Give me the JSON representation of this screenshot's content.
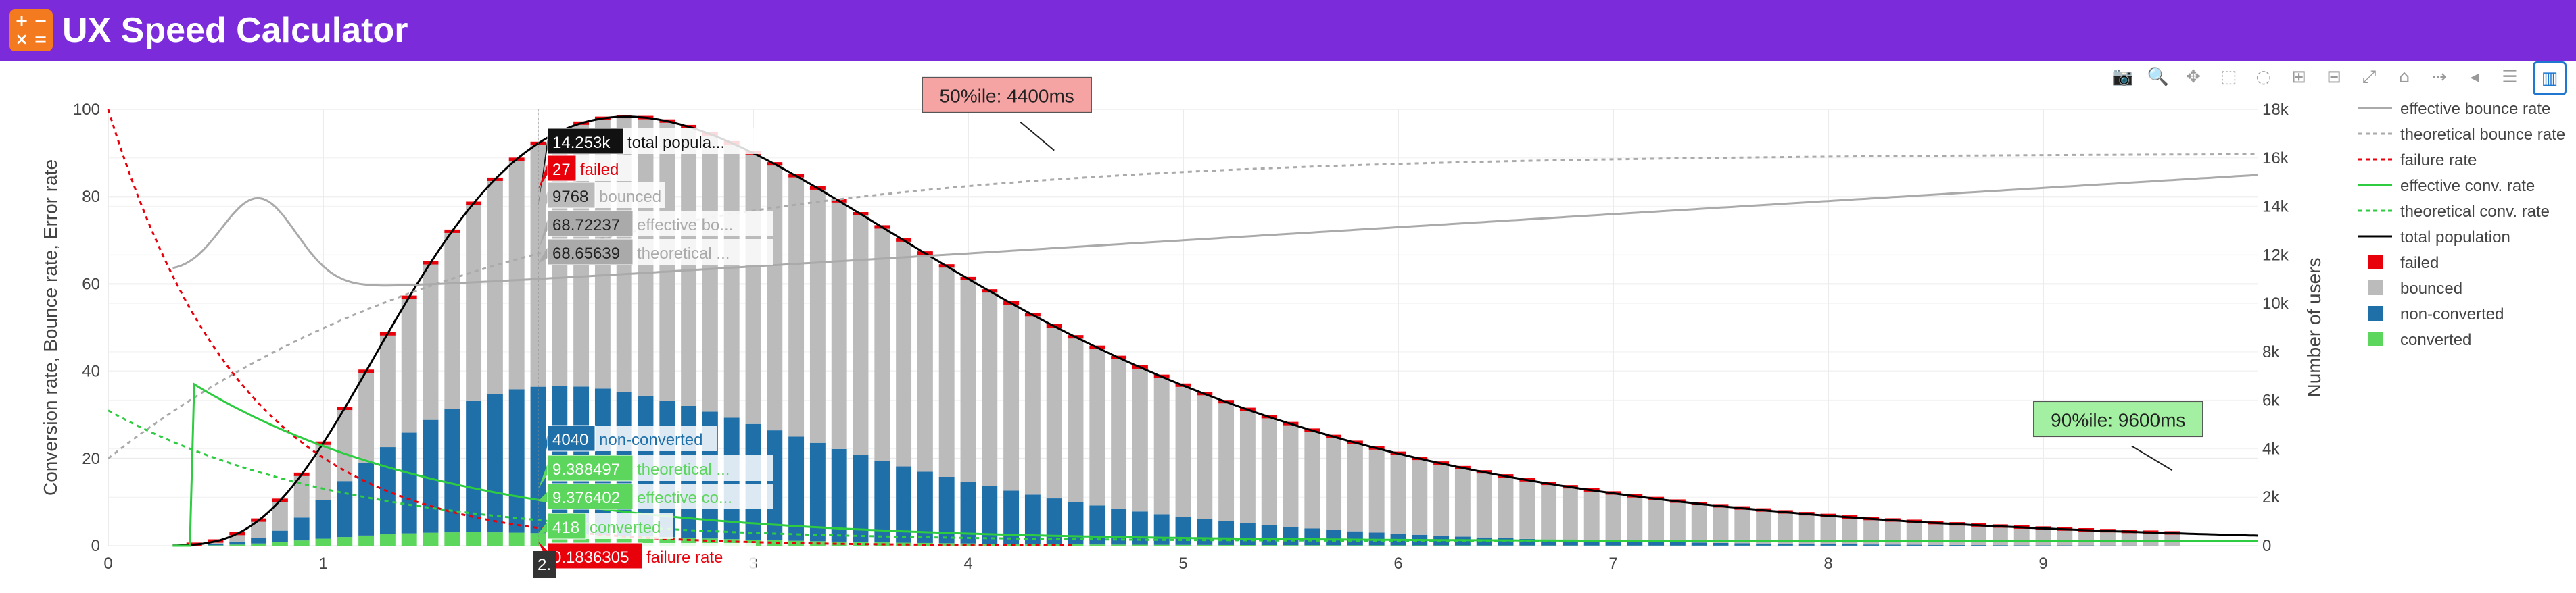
{
  "app": {
    "title": "UX Speed Calculator",
    "icon_glyphs": [
      "+",
      "−",
      "×",
      "="
    ]
  },
  "modebar": {
    "buttons": [
      {
        "name": "camera-icon",
        "glyph": "📷"
      },
      {
        "name": "zoom-icon",
        "glyph": "🔍"
      },
      {
        "name": "pan-icon",
        "glyph": "✥"
      },
      {
        "name": "box-select-icon",
        "glyph": "⬚"
      },
      {
        "name": "lasso-select-icon",
        "glyph": "◌"
      },
      {
        "name": "zoom-in-icon",
        "glyph": "⊞"
      },
      {
        "name": "zoom-out-icon",
        "glyph": "⊟"
      },
      {
        "name": "autoscale-icon",
        "glyph": "⤢"
      },
      {
        "name": "reset-axes-icon",
        "glyph": "⌂"
      },
      {
        "name": "spike-lines-icon",
        "glyph": "⇢"
      },
      {
        "name": "hover-closest-icon",
        "glyph": "◂"
      },
      {
        "name": "hover-compare-icon",
        "glyph": "☰"
      },
      {
        "name": "plotly-logo-icon",
        "glyph": "▥"
      }
    ]
  },
  "chart_data": {
    "type": "bar",
    "xlim": [
      0,
      10
    ],
    "x_ticks": [
      "0",
      "1",
      "2",
      "3",
      "4",
      "5",
      "6",
      "7",
      "8",
      "9"
    ],
    "ylabel_left": "Conversion rate, Bounce rate, Error rate",
    "ylim_left": [
      0,
      100
    ],
    "y_ticks_left": [
      "0",
      "20",
      "40",
      "60",
      "80",
      "100"
    ],
    "ylabel_right": "Number of users",
    "ylim_right": [
      0,
      18000
    ],
    "y_ticks_right": [
      "0",
      "2k",
      "4k",
      "6k",
      "8k",
      "10k",
      "12k",
      "14k",
      "16k",
      "18k"
    ],
    "grid": true,
    "legend_position": "right",
    "legend": [
      {
        "label": "effective bounce rate",
        "style": "line",
        "color": "#aaaaaa"
      },
      {
        "label": "theoretical bounce rate",
        "style": "dot",
        "color": "#aaaaaa"
      },
      {
        "label": "failure rate",
        "style": "dot",
        "color": "#e8000b"
      },
      {
        "label": "effective conv. rate",
        "style": "line",
        "color": "#2ecc40"
      },
      {
        "label": "theoretical conv. rate",
        "style": "dot",
        "color": "#2ecc40"
      },
      {
        "label": "total population",
        "style": "line",
        "color": "#000000"
      },
      {
        "label": "failed",
        "style": "box",
        "color": "#e8000b"
      },
      {
        "label": "bounced",
        "style": "box",
        "color": "#bbbbbb"
      },
      {
        "label": "non-converted",
        "style": "box",
        "color": "#1f6fa8"
      },
      {
        "label": "converted",
        "style": "box",
        "color": "#5cd65c"
      }
    ],
    "hover_x": "2.",
    "hover_labels": [
      {
        "value": "14.253k",
        "name": "total popula...",
        "kind": "total"
      },
      {
        "value": "27",
        "name": "failed",
        "kind": "failed"
      },
      {
        "value": "9768",
        "name": "bounced",
        "kind": "bounced"
      },
      {
        "value": "68.72237",
        "name": "effective bo...",
        "kind": "ebr"
      },
      {
        "value": "68.65639",
        "name": "theoretical ...",
        "kind": "tbr"
      },
      {
        "value": "4040",
        "name": "non-converted",
        "kind": "nonconv"
      },
      {
        "value": "9.388497",
        "name": "theoretical ...",
        "kind": "tcr"
      },
      {
        "value": "9.376402",
        "name": "effective co...",
        "kind": "ecr"
      },
      {
        "value": "418",
        "name": "converted",
        "kind": "conv"
      },
      {
        "value": "0.1836305",
        "name": "failure rate",
        "kind": "fr"
      }
    ],
    "annotations": [
      {
        "text": "50%ile:  4400ms",
        "x": 4.4,
        "y_users": 16200
      },
      {
        "text": "90%ile:  9600ms",
        "x": 9.6,
        "y_users": 3000
      }
    ],
    "population_params": {
      "mu_log": 1.15,
      "sigma_log": 0.52,
      "peak_users": 17700,
      "x_start": 0.4,
      "bar_width": 0.1,
      "x_end": 9.6
    }
  }
}
